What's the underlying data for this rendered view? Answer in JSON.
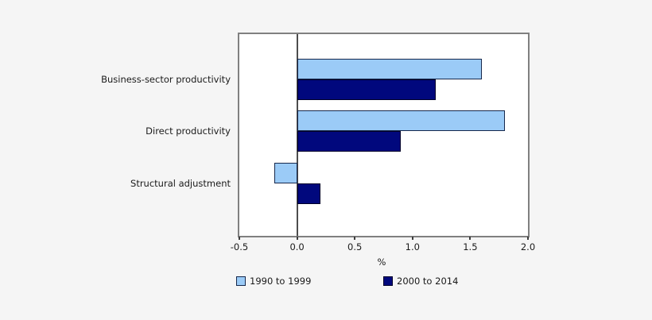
{
  "chart_data": {
    "type": "bar",
    "orientation": "horizontal",
    "title": "",
    "xlabel": "%",
    "categories": [
      "Business-sector productivity",
      "Direct productivity",
      "Structural adjustment"
    ],
    "series": [
      {
        "name": "1990 to 1999",
        "values": [
          1.6,
          1.8,
          -0.2
        ],
        "color": "#9bcbf7",
        "border_color": "#16284c"
      },
      {
        "name": "2000 to 2014",
        "values": [
          1.2,
          0.9,
          0.2
        ],
        "color": "#01087d",
        "border_color": "#000028"
      }
    ],
    "xlim": [
      -0.5,
      2.0
    ],
    "xticks": [
      "-0.5",
      "0.0",
      "0.5",
      "1.0",
      "1.5",
      "2.0"
    ],
    "grid": false,
    "legend_position": "bottom"
  },
  "colors": {
    "background": "#f5f5f5",
    "plot_background": "#ffffff",
    "frame": "#808080",
    "zero_line": "#4d4d4d",
    "tick": "#3d3d3d",
    "text": "#1a1a1a"
  }
}
